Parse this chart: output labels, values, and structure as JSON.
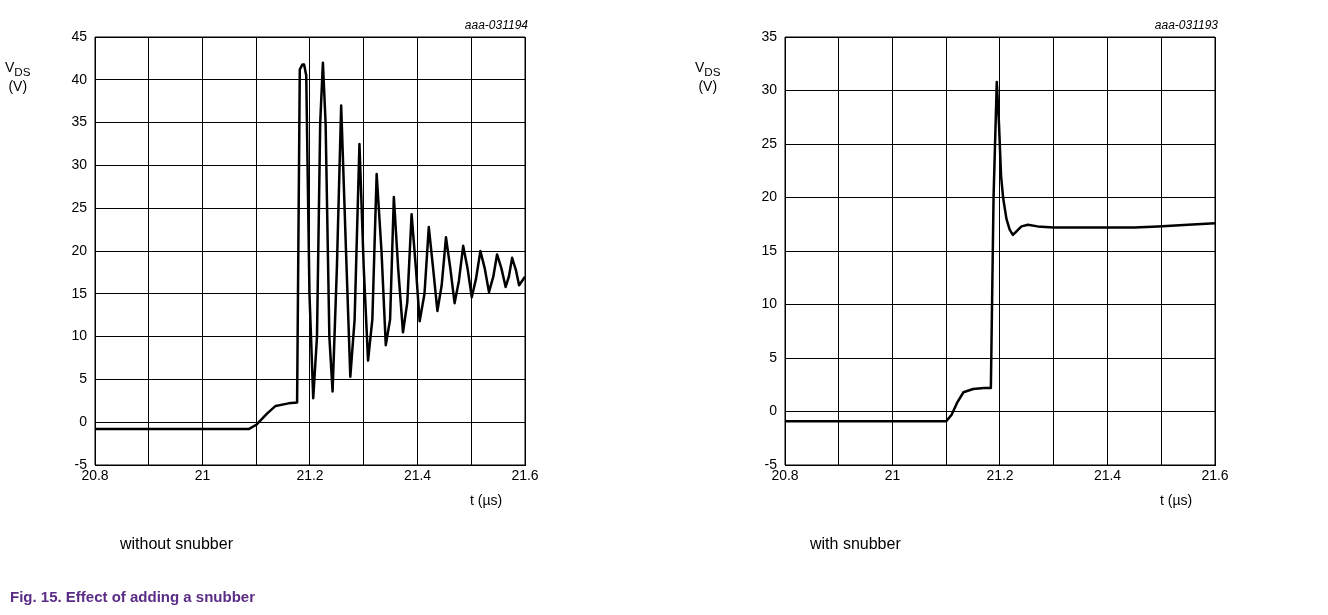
{
  "chart_data": [
    {
      "type": "line",
      "title": "without snubber",
      "xlabel": "t (µs)",
      "ylabel": "V$_{DS}$ (V)",
      "annotations": [
        "aaa-031194",
        "Fig. 15.  Effect of adding a snubber"
      ],
      "x": [
        20.8,
        20.9,
        21.0,
        21.086,
        21.1,
        21.12,
        21.136,
        21.16,
        21.176,
        21.181,
        21.186,
        21.189,
        21.193,
        21.199,
        21.206,
        21.213,
        21.219,
        21.224,
        21.229,
        21.236,
        21.242,
        21.25,
        21.258,
        21.267,
        21.275,
        21.283,
        21.292,
        21.3,
        21.308,
        21.316,
        21.324,
        21.333,
        21.341,
        21.349,
        21.356,
        21.364,
        21.373,
        21.381,
        21.389,
        21.397,
        21.404,
        21.413,
        21.421,
        21.429,
        21.437,
        21.445,
        21.453,
        21.461,
        21.469,
        21.477,
        21.485,
        21.493,
        21.501,
        21.509,
        21.517,
        21.525,
        21.533,
        21.541,
        21.548,
        21.556,
        21.564,
        21.57,
        21.576,
        21.583,
        21.589,
        21.6
      ],
      "values": [
        -0.8,
        -0.8,
        -0.8,
        -0.8,
        -0.3,
        1.0,
        1.9,
        2.2,
        2.3,
        41.2,
        41.8,
        41.8,
        40.5,
        15,
        2.8,
        10,
        35,
        42,
        35,
        10,
        3.6,
        18,
        37,
        20,
        5.3,
        12,
        32.5,
        18,
        7.2,
        12,
        29,
        20,
        9,
        12,
        26.3,
        18,
        10.5,
        14,
        24.3,
        18,
        11.8,
        15,
        22.8,
        18,
        13,
        16,
        21.6,
        18,
        13.9,
        16.5,
        20.6,
        18,
        14.6,
        16.8,
        20,
        18,
        15.2,
        17,
        19.6,
        18,
        15.8,
        17,
        19.2,
        17.8,
        16,
        17
      ],
      "color": "#000000",
      "xlim": [
        20.8,
        21.6
      ],
      "ylim": [
        -5,
        45
      ],
      "xticks": [
        20.8,
        {
          "value": 20.9,
          "label": null
        },
        21,
        {
          "value": 21.1,
          "label": null
        },
        21.2,
        {
          "value": 21.3,
          "label": null
        },
        21.4,
        {
          "value": 21.5,
          "label": null
        },
        21.6
      ],
      "yticks": [
        -5,
        0,
        5,
        10,
        15,
        20,
        25,
        30,
        35,
        40,
        45
      ],
      "grid": true,
      "legend": false,
      "marker": "none",
      "line_style": "solid"
    },
    {
      "type": "line",
      "title": "with snubber",
      "xlabel": "t (µs)",
      "ylabel": "V$_{DS}$ (V)",
      "annotations": [
        "aaa-031193"
      ],
      "x": [
        20.8,
        20.9,
        21.0,
        21.1,
        21.11,
        21.12,
        21.132,
        21.15,
        21.17,
        21.183,
        21.188,
        21.194,
        21.198,
        21.202,
        21.206,
        21.212,
        21.218,
        21.224,
        21.232,
        21.24,
        21.252,
        21.27,
        21.3,
        21.35,
        21.397,
        21.45,
        21.494,
        21.55,
        21.6
      ],
      "values": [
        -0.9,
        -0.9,
        -0.9,
        -0.9,
        -0.3,
        0.8,
        1.8,
        2.1,
        2.2,
        2.2,
        20,
        30.8,
        27,
        22,
        19.9,
        18,
        17,
        16.5,
        16.9,
        17.3,
        17.45,
        17.3,
        17.2,
        17.2,
        17.2,
        17.2,
        17.3,
        17.45,
        17.6
      ],
      "color": "#000000",
      "xlim": [
        20.8,
        21.6
      ],
      "ylim": [
        -5,
        35
      ],
      "xticks": [
        20.8,
        {
          "value": 20.9,
          "label": null
        },
        21,
        {
          "value": 21.1,
          "label": null
        },
        21.2,
        {
          "value": 21.3,
          "label": null
        },
        21.4,
        {
          "value": 21.5,
          "label": null
        },
        21.6
      ],
      "yticks": [
        -5,
        0,
        5,
        10,
        15,
        20,
        25,
        30,
        35
      ],
      "grid": true,
      "legend": false,
      "marker": "none",
      "line_style": "solid"
    }
  ]
}
